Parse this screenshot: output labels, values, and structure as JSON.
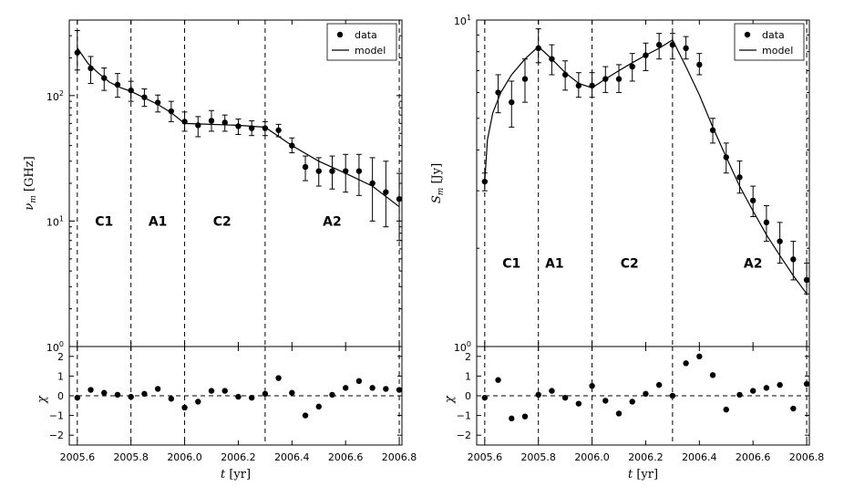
{
  "chart_data": [
    {
      "type": "scatter",
      "panel": "left-top",
      "ylabel": "ν_m  [GHz]",
      "ylabel_sym": "ν",
      "ylabel_sub": "m",
      "ylabel_unit": "[GHz]",
      "yscale": "log",
      "xlim": [
        2005.57,
        2006.81
      ],
      "ylim": [
        1,
        400
      ],
      "yticks": [
        {
          "v": 1,
          "base": "10",
          "exp": "0"
        },
        {
          "v": 10,
          "base": "10",
          "exp": "1"
        },
        {
          "v": 100,
          "base": "10",
          "exp": "2"
        }
      ],
      "legend": {
        "position": "top-right",
        "entries": [
          "data",
          "model"
        ]
      },
      "phase_lines": [
        2005.6,
        2005.8,
        2006.0,
        2006.3,
        2006.8
      ],
      "phases": [
        {
          "label": "C1",
          "x": 2005.7
        },
        {
          "label": "A1",
          "x": 2005.9
        },
        {
          "label": "C2",
          "x": 2006.14
        },
        {
          "label": "A2",
          "x": 2006.55
        }
      ],
      "phase_label_y": 10,
      "series": [
        {
          "name": "data",
          "x": [
            2005.6,
            2005.65,
            2005.7,
            2005.75,
            2005.8,
            2005.85,
            2005.9,
            2005.95,
            2006.0,
            2006.05,
            2006.1,
            2006.15,
            2006.2,
            2006.25,
            2006.3,
            2006.35,
            2006.4,
            2006.45,
            2006.5,
            2006.55,
            2006.6,
            2006.65,
            2006.7,
            2006.75,
            2006.8
          ],
          "y": [
            220,
            165,
            138,
            122,
            110,
            97,
            88,
            75,
            62,
            58,
            63,
            61,
            57,
            55,
            55,
            53,
            40,
            27,
            25,
            25,
            25,
            25,
            20,
            17,
            15
          ],
          "err_lo": [
            160,
            125,
            110,
            97,
            90,
            82,
            74,
            62,
            52,
            47,
            52,
            52,
            49,
            48,
            48,
            47,
            35,
            21,
            19,
            18,
            17,
            16,
            10,
            9,
            7
          ],
          "err_hi": [
            330,
            205,
            166,
            150,
            130,
            113,
            101,
            90,
            74,
            68,
            76,
            70,
            65,
            63,
            62,
            59,
            46,
            33,
            32,
            33,
            34,
            34,
            32,
            30,
            24
          ]
        },
        {
          "name": "model",
          "x": [
            2005.6,
            2005.64,
            2005.68,
            2005.72,
            2005.76,
            2005.8,
            2005.85,
            2005.9,
            2005.95,
            2006.0,
            2006.1,
            2006.2,
            2006.3,
            2006.4,
            2006.5,
            2006.6,
            2006.7,
            2006.8
          ],
          "y": [
            240,
            180,
            150,
            128,
            116,
            108,
            96,
            85,
            73,
            60,
            59,
            58,
            56,
            40,
            30,
            24,
            19,
            13
          ]
        }
      ]
    },
    {
      "type": "scatter",
      "panel": "left-bottom",
      "ylabel": "χ",
      "xlabel_sym": "t",
      "xlabel_unit": "[yr]",
      "xlim": [
        2005.57,
        2006.81
      ],
      "ylim": [
        -2.5,
        2.5
      ],
      "yticks": [
        {
          "v": 2,
          "l": "2"
        },
        {
          "v": 1,
          "l": "1"
        },
        {
          "v": 0,
          "l": "0"
        },
        {
          "v": -1,
          "l": "−1"
        },
        {
          "v": -2,
          "l": "−2"
        }
      ],
      "xticks": [
        {
          "v": 2005.6,
          "l": "2005.6"
        },
        {
          "v": 2005.8,
          "l": "2005.8"
        },
        {
          "v": 2006.0,
          "l": "2006.0"
        },
        {
          "v": 2006.2,
          "l": "2006.2"
        },
        {
          "v": 2006.4,
          "l": "2006.4"
        },
        {
          "v": 2006.6,
          "l": "2006.6"
        },
        {
          "v": 2006.8,
          "l": "2006.8"
        }
      ],
      "zero_line": true,
      "phase_lines": [
        2005.6,
        2005.8,
        2006.0,
        2006.3,
        2006.8
      ],
      "series": [
        {
          "name": "residuals",
          "x": [
            2005.6,
            2005.65,
            2005.7,
            2005.75,
            2005.8,
            2005.85,
            2005.9,
            2005.95,
            2006.0,
            2006.05,
            2006.1,
            2006.15,
            2006.2,
            2006.25,
            2006.3,
            2006.35,
            2006.4,
            2006.45,
            2006.5,
            2006.55,
            2006.6,
            2006.65,
            2006.7,
            2006.75,
            2006.8
          ],
          "y": [
            -0.1,
            0.3,
            0.15,
            0.05,
            -0.05,
            0.1,
            0.35,
            -0.15,
            -0.6,
            -0.3,
            0.25,
            0.25,
            -0.05,
            -0.1,
            0.1,
            0.9,
            0.15,
            -1.0,
            -0.55,
            0.05,
            0.4,
            0.75,
            0.4,
            0.35,
            0.3
          ]
        }
      ]
    },
    {
      "type": "scatter",
      "panel": "right-top",
      "ylabel": "S_m  [Jy]",
      "ylabel_sym": "S",
      "ylabel_sub": "m",
      "ylabel_unit": "[Jy]",
      "yscale": "log",
      "xlim": [
        2005.57,
        2006.81
      ],
      "ylim": [
        1,
        10
      ],
      "yticks": [
        {
          "v": 1,
          "base": "10",
          "exp": "0"
        },
        {
          "v": 10,
          "base": "10",
          "exp": "1"
        }
      ],
      "legend": {
        "position": "top-right",
        "entries": [
          "data",
          "model"
        ]
      },
      "phase_lines": [
        2005.6,
        2005.8,
        2006.0,
        2006.3,
        2006.8
      ],
      "phases": [
        {
          "label": "C1",
          "x": 2005.7
        },
        {
          "label": "A1",
          "x": 2005.86
        },
        {
          "label": "C2",
          "x": 2006.14
        },
        {
          "label": "A2",
          "x": 2006.6
        }
      ],
      "phase_label_y": 1.8,
      "series": [
        {
          "name": "data",
          "x": [
            2005.6,
            2005.65,
            2005.7,
            2005.75,
            2005.8,
            2005.85,
            2005.9,
            2005.95,
            2006.0,
            2006.05,
            2006.1,
            2006.15,
            2006.2,
            2006.25,
            2006.3,
            2006.35,
            2006.4,
            2006.45,
            2006.5,
            2006.55,
            2006.6,
            2006.65,
            2006.7,
            2006.75,
            2006.8
          ],
          "y": [
            3.2,
            6.0,
            5.6,
            6.6,
            8.2,
            7.6,
            6.8,
            6.3,
            6.3,
            6.6,
            6.6,
            7.2,
            7.8,
            8.4,
            8.4,
            8.2,
            7.3,
            4.6,
            3.8,
            3.3,
            2.8,
            2.4,
            2.1,
            1.85,
            1.6
          ],
          "err_lo": [
            3.0,
            5.2,
            4.7,
            5.6,
            7.4,
            6.8,
            6.1,
            5.8,
            5.8,
            6.0,
            6.0,
            6.5,
            7.0,
            7.6,
            7.6,
            7.6,
            6.8,
            4.2,
            3.4,
            2.95,
            2.5,
            2.1,
            1.8,
            1.6,
            1.45
          ],
          "err_hi": [
            3.4,
            6.8,
            6.5,
            7.6,
            9.4,
            8.4,
            7.5,
            6.9,
            6.9,
            7.2,
            7.3,
            7.9,
            8.5,
            9.1,
            9.1,
            8.9,
            7.9,
            5.0,
            4.2,
            3.7,
            3.1,
            2.7,
            2.4,
            2.1,
            1.8
          ]
        },
        {
          "name": "model",
          "x": [
            2005.6,
            2005.61,
            2005.63,
            2005.66,
            2005.7,
            2005.75,
            2005.8,
            2005.85,
            2005.9,
            2005.95,
            2006.0,
            2006.05,
            2006.1,
            2006.15,
            2006.2,
            2006.25,
            2006.3,
            2006.35,
            2006.4,
            2006.45,
            2006.5,
            2006.55,
            2006.6,
            2006.65,
            2006.7,
            2006.75,
            2006.8
          ],
          "y": [
            3.2,
            4.3,
            5.2,
            6.0,
            6.8,
            7.6,
            8.3,
            7.6,
            6.9,
            6.4,
            6.2,
            6.6,
            7.0,
            7.4,
            7.8,
            8.2,
            8.7,
            7.2,
            5.9,
            4.7,
            3.8,
            3.1,
            2.6,
            2.2,
            1.9,
            1.65,
            1.45
          ]
        }
      ]
    },
    {
      "type": "scatter",
      "panel": "right-bottom",
      "ylabel": "χ",
      "xlabel_sym": "t",
      "xlabel_unit": "[yr]",
      "xlim": [
        2005.57,
        2006.81
      ],
      "ylim": [
        -2.5,
        2.5
      ],
      "yticks": [
        {
          "v": 2,
          "l": "2"
        },
        {
          "v": 1,
          "l": "1"
        },
        {
          "v": 0,
          "l": "0"
        },
        {
          "v": -1,
          "l": "−1"
        },
        {
          "v": -2,
          "l": "−2"
        }
      ],
      "xticks": [
        {
          "v": 2005.6,
          "l": "2005.6"
        },
        {
          "v": 2005.8,
          "l": "2005.8"
        },
        {
          "v": 2006.0,
          "l": "2006.0"
        },
        {
          "v": 2006.2,
          "l": "2006.2"
        },
        {
          "v": 2006.4,
          "l": "2006.4"
        },
        {
          "v": 2006.6,
          "l": "2006.6"
        },
        {
          "v": 2006.8,
          "l": "2006.8"
        }
      ],
      "zero_line": true,
      "phase_lines": [
        2005.6,
        2005.8,
        2006.0,
        2006.3,
        2006.8
      ],
      "series": [
        {
          "name": "residuals",
          "x": [
            2005.6,
            2005.65,
            2005.7,
            2005.75,
            2005.8,
            2005.85,
            2005.9,
            2005.95,
            2006.0,
            2006.05,
            2006.1,
            2006.15,
            2006.2,
            2006.25,
            2006.3,
            2006.35,
            2006.4,
            2006.45,
            2006.5,
            2006.55,
            2006.6,
            2006.65,
            2006.7,
            2006.75,
            2006.8
          ],
          "y": [
            -0.1,
            0.8,
            -1.15,
            -1.05,
            0.05,
            0.25,
            -0.1,
            -0.4,
            0.5,
            -0.25,
            -0.9,
            -0.3,
            0.1,
            0.55,
            0.0,
            1.65,
            2.0,
            1.05,
            -0.7,
            0.05,
            0.25,
            0.4,
            0.55,
            -0.65,
            0.6
          ]
        }
      ]
    }
  ]
}
